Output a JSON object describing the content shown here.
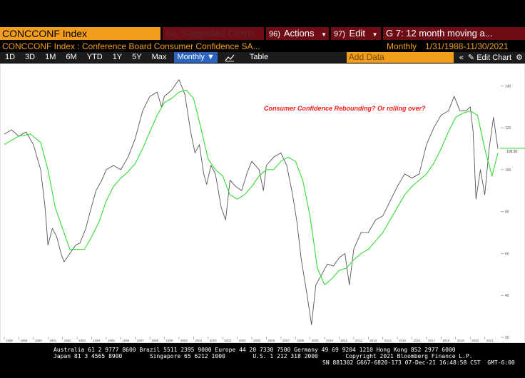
{
  "header": {
    "ticker": "CONCCONF Index",
    "suggested_num": "94)",
    "suggested_label": "Suggested Charts",
    "actions_num": "96)",
    "actions_label": "Actions",
    "edit_num": "97)",
    "edit_label": "Edit",
    "study_label": "G 7: 12 month moving a..."
  },
  "subheader": {
    "description": "CONCCONF Index : Conference Board Consumer Confidence SA...",
    "period": "Monthly",
    "date_range": "1/31/1988-11/30/2021"
  },
  "toolbar": {
    "ranges": [
      "1D",
      "3D",
      "1M",
      "6M",
      "YTD",
      "1Y",
      "5Y",
      "Max"
    ],
    "frequency": "Monthly",
    "table_label": "Table",
    "add_data_placeholder": "Add Data",
    "collapse_icon": "double-chevron-left",
    "edit_chart_label": "Edit Chart",
    "settings_icon": "gear"
  },
  "colors": {
    "accent_orange": "#f29d1b",
    "button_red": "#6e0d15",
    "selected_blue": "#2a63c0",
    "series_index": "#b8b8b8",
    "series_ma": "#33dd33",
    "annotation": "#ff1a1a"
  },
  "chart_data": {
    "type": "line",
    "annotation": "Consumer Confidence Rebounding? Or rolling over?",
    "last_value_label": "109.50",
    "ylim": [
      20,
      150
    ],
    "y_ticks": [
      20,
      40,
      60,
      80,
      100,
      120,
      140
    ],
    "x_ticks": [
      "1988",
      "1989",
      "1990",
      "1991",
      "1992",
      "1993",
      "1994",
      "1995",
      "1996",
      "1997",
      "1998",
      "1999",
      "2000",
      "2001",
      "2002",
      "2003",
      "2004",
      "2005",
      "2006",
      "2007",
      "2008",
      "2009",
      "2010",
      "2011",
      "2012",
      "2013",
      "2014",
      "2015",
      "2016",
      "2017",
      "2018",
      "2019",
      "2020",
      "2021"
    ],
    "grid": false,
    "series": [
      {
        "x": [
          1988.0,
          1988.5,
          1989.0,
          1989.5,
          1990.0,
          1990.5,
          1990.8,
          1991.0,
          1991.3,
          1991.6,
          1991.9,
          1992.1,
          1992.5,
          1992.9,
          1993.2,
          1993.6,
          1993.9,
          1994.3,
          1994.7,
          1995.0,
          1995.5,
          1996.0,
          1996.5,
          1997.0,
          1997.5,
          1998.0,
          1998.5,
          1998.8,
          1999.0,
          1999.5,
          2000.0,
          2000.4,
          2000.8,
          2001.1,
          2001.4,
          2001.7,
          2001.9,
          2002.2,
          2002.5,
          2002.9,
          2003.2,
          2003.5,
          2003.9,
          2004.3,
          2004.7,
          2005.0,
          2005.5,
          2005.8,
          2006.0,
          2006.5,
          2007.0,
          2007.4,
          2007.8,
          2008.1,
          2008.4,
          2008.8,
          2009.1,
          2009.4,
          2009.8,
          2010.2,
          2010.6,
          2011.0,
          2011.4,
          2011.7,
          2012.0,
          2012.5,
          2013.0,
          2013.5,
          2014.0,
          2014.5,
          2015.0,
          2015.5,
          2016.0,
          2016.5,
          2017.0,
          2017.5,
          2018.0,
          2018.5,
          2018.9,
          2019.3,
          2019.7,
          2020.0,
          2020.2,
          2020.4,
          2020.7,
          2021.0,
          2021.3,
          2021.6,
          2021.9
        ],
        "values": [
          117,
          119,
          116,
          118,
          112,
          100,
          82,
          64,
          72,
          68,
          60,
          56,
          60,
          64,
          65,
          72,
          80,
          90,
          95,
          100,
          102,
          100,
          106,
          115,
          128,
          135,
          137,
          130,
          135,
          138,
          143,
          136,
          118,
          108,
          112,
          98,
          93,
          102,
          98,
          82,
          76,
          95,
          92,
          90,
          99,
          104,
          100,
          90,
          102,
          106,
          108,
          102,
          88,
          75,
          57,
          40,
          26,
          45,
          50,
          55,
          54,
          58,
          60,
          45,
          62,
          70,
          70,
          76,
          78,
          85,
          92,
          98,
          96,
          98,
          112,
          120,
          126,
          128,
          135,
          128,
          128,
          130,
          118,
          86,
          100,
          88,
          110,
          125,
          110
        ]
      },
      {
        "x": [
          1988.0,
          1989.0,
          1989.8,
          1990.5,
          1991.0,
          1991.5,
          1992.0,
          1992.5,
          1993.0,
          1993.5,
          1994.0,
          1994.5,
          1995.0,
          1995.5,
          1996.0,
          1996.5,
          1997.0,
          1997.5,
          1998.0,
          1998.5,
          1999.0,
          1999.5,
          2000.0,
          2000.5,
          2001.0,
          2001.5,
          2002.0,
          2002.5,
          2003.0,
          2003.5,
          2004.0,
          2004.5,
          2005.0,
          2005.5,
          2006.0,
          2006.5,
          2007.0,
          2007.5,
          2008.0,
          2008.5,
          2009.0,
          2009.5,
          2010.0,
          2010.5,
          2011.0,
          2011.5,
          2012.0,
          2012.5,
          2013.0,
          2013.5,
          2014.0,
          2014.5,
          2015.0,
          2015.5,
          2016.0,
          2016.5,
          2017.0,
          2017.5,
          2018.0,
          2018.5,
          2019.0,
          2019.5,
          2020.0,
          2020.5,
          2021.0,
          2021.5,
          2021.9
        ],
        "values": [
          112,
          116,
          117,
          113,
          100,
          82,
          72,
          62,
          62,
          62,
          68,
          75,
          85,
          92,
          96,
          99,
          103,
          110,
          118,
          126,
          132,
          134,
          137,
          138,
          134,
          120,
          105,
          100,
          97,
          88,
          86,
          88,
          92,
          97,
          100,
          100,
          104,
          106,
          104,
          95,
          78,
          53,
          45,
          48,
          52,
          53,
          57,
          60,
          62,
          66,
          70,
          76,
          82,
          88,
          92,
          95,
          98,
          103,
          110,
          118,
          125,
          127,
          128,
          126,
          110,
          97,
          108
        ]
      }
    ]
  },
  "footer": {
    "line1": "Australia 61 2 9777 8600 Brazil 5511 2395 9000 Europe 44 20 7330 7500 Germany 49 69 9204 1210 Hong Kong 852 2977 6000",
    "line2": "Japan 81 3 4565 8900        Singapore 65 6212 1000        U.S. 1 212 318 2000        Copyright 2021 Bloomberg Finance L.P.",
    "line3": "SN 881302 G667-6820-173 07-Dec-21 16:48:58 CST  GMT-6:00"
  }
}
